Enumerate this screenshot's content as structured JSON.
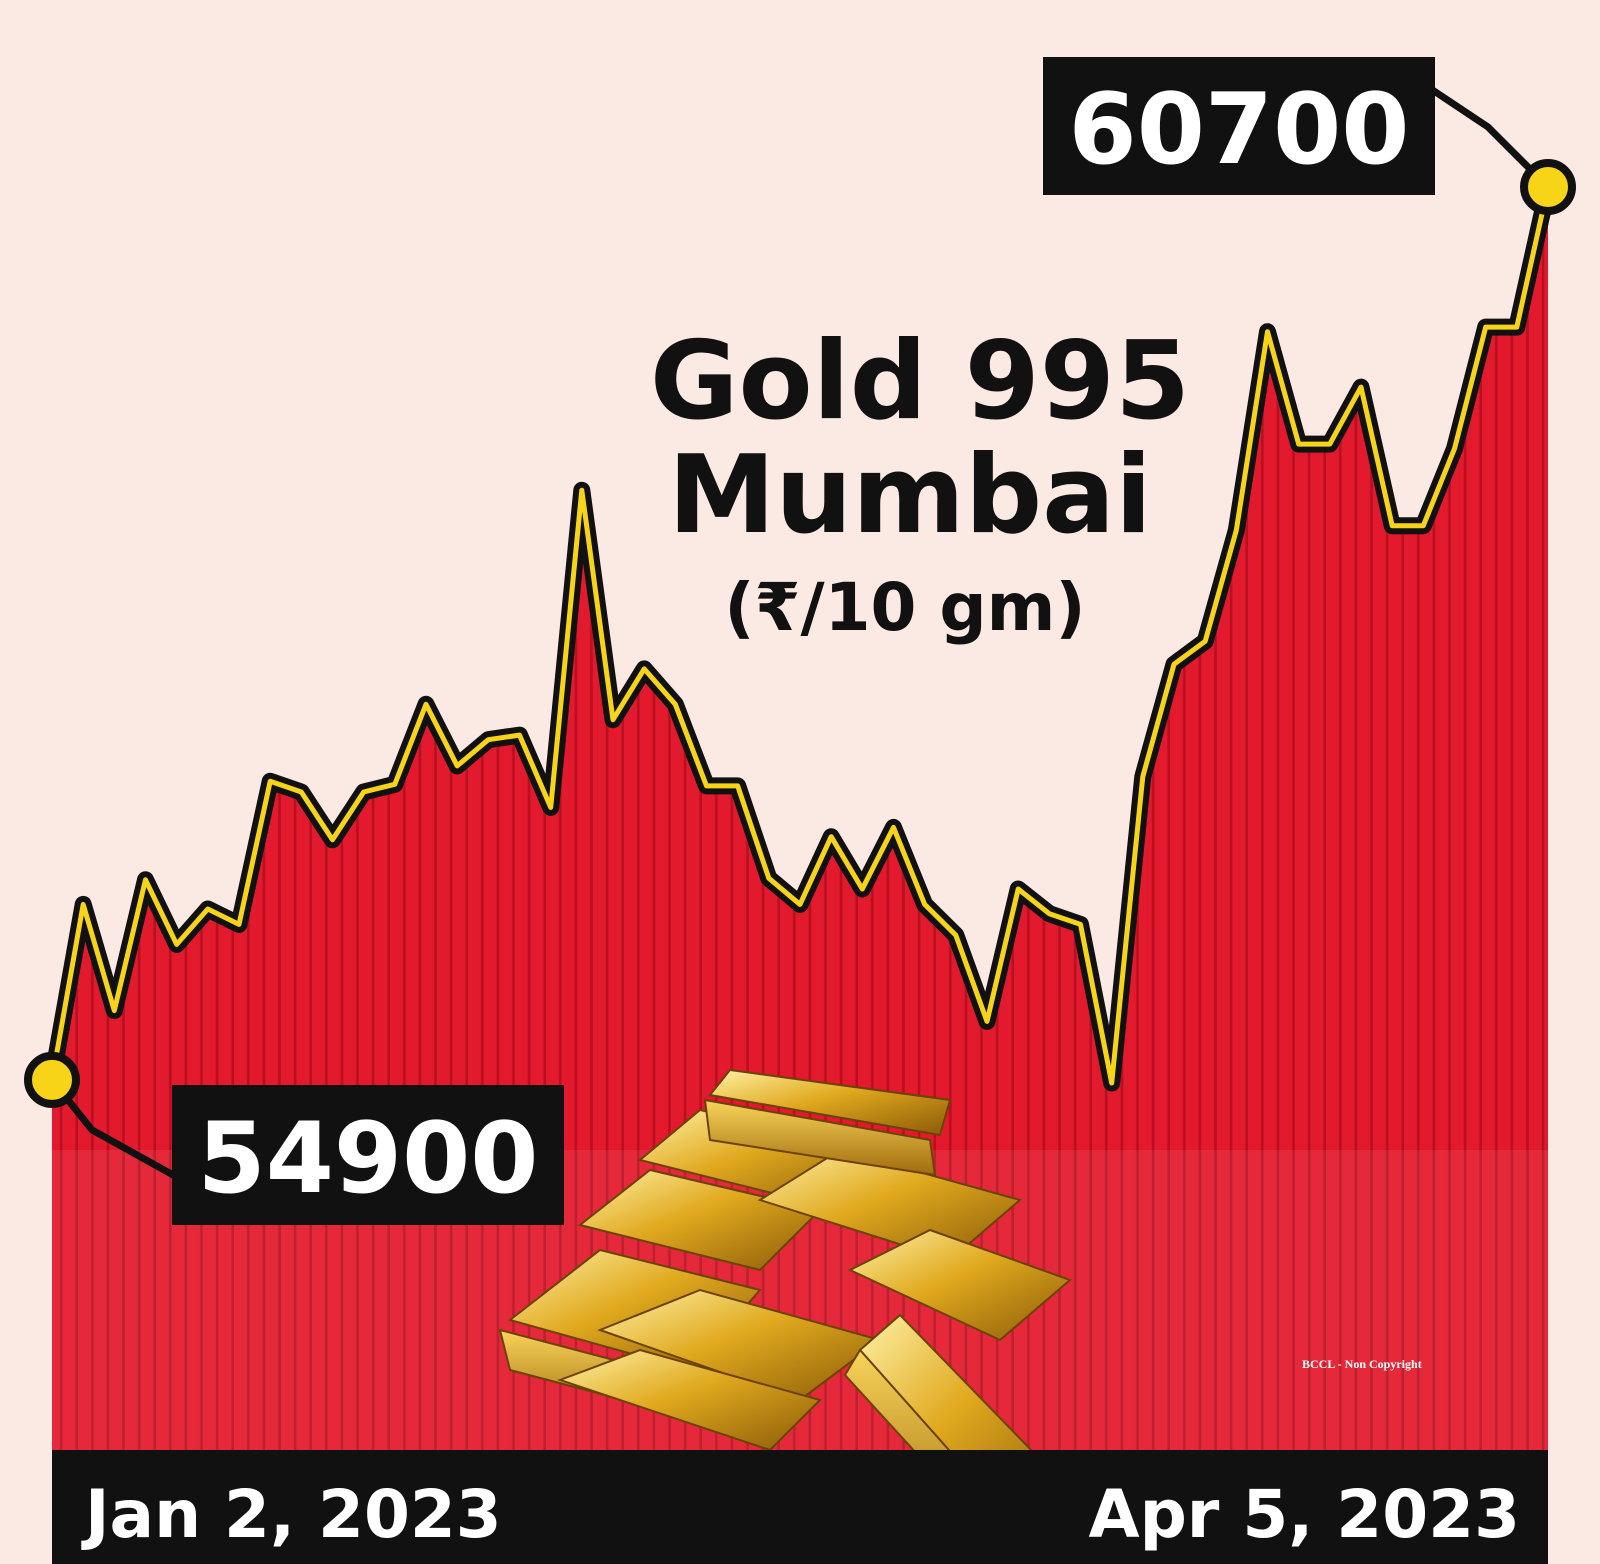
{
  "chart_data": {
    "type": "line",
    "title": [
      "Gold 995",
      "Mumbai"
    ],
    "subtitle": "(₹/10 gm)",
    "source": "BCCL - Non Copyright",
    "categories": [
      "Jan 2, 2023",
      null,
      null,
      null,
      null,
      null,
      null,
      null,
      null,
      null,
      null,
      null,
      null,
      null,
      null,
      null,
      null,
      null,
      null,
      null,
      null,
      null,
      null,
      null,
      null,
      null,
      null,
      null,
      null,
      null,
      null,
      null,
      null,
      null,
      null,
      null,
      null,
      null,
      null,
      null,
      null,
      null,
      null,
      null,
      null,
      null,
      null,
      null,
      "Apr 5, 2023"
    ],
    "values": [
      54900,
      56040,
      55350,
      56200,
      55780,
      56010,
      55910,
      56840,
      56770,
      56460,
      56770,
      56820,
      57340,
      56940,
      57110,
      57140,
      56670,
      58730,
      57240,
      57570,
      57340,
      56810,
      56810,
      56210,
      56040,
      56480,
      56140,
      56540,
      56040,
      55840,
      55280,
      56140,
      55980,
      55910,
      54880,
      56870,
      57600,
      57750,
      58470,
      59760,
      59030,
      59030,
      59400,
      58500,
      58500,
      59000,
      59790,
      59790,
      60700
    ],
    "color": "#f7d417",
    "area_color": "#e3192d"
  }
}
